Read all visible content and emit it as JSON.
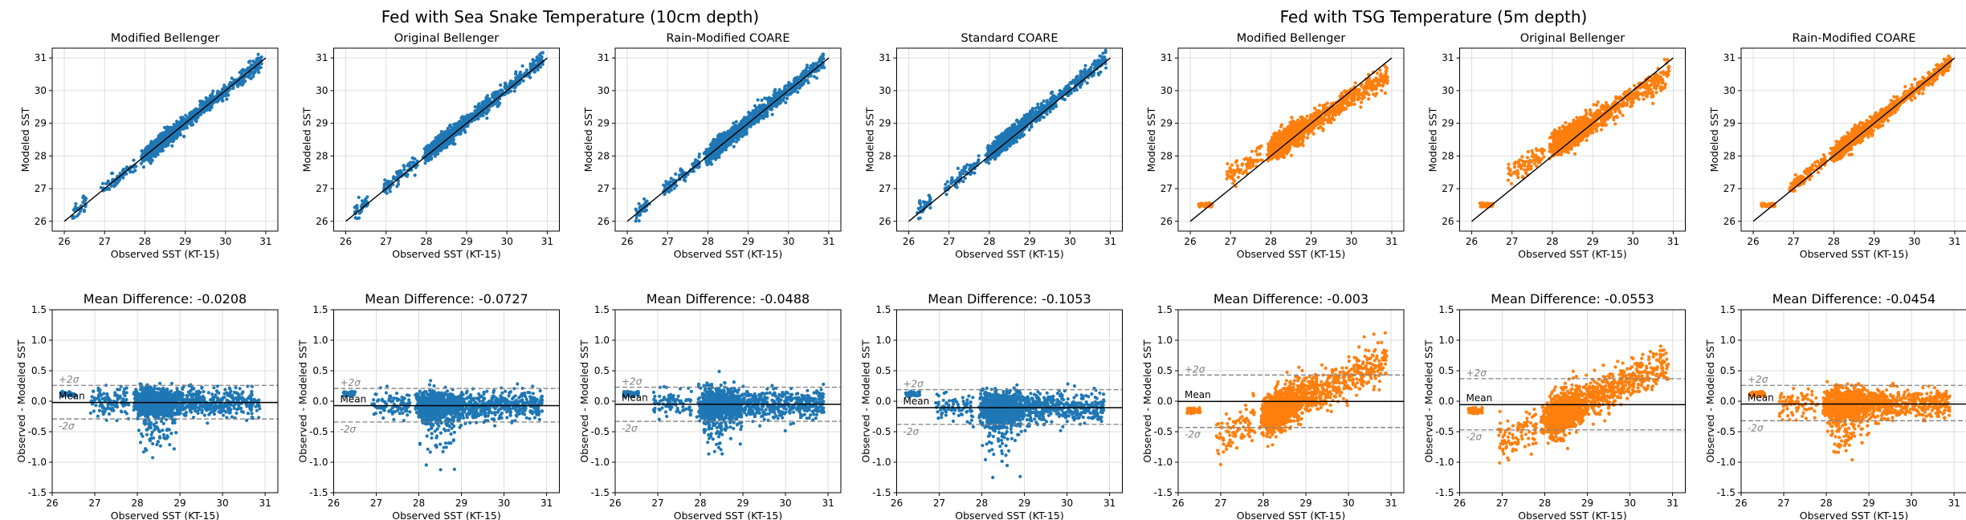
{
  "figure": {
    "left_title": "Fed with Sea Snake Temperature (10cm depth)",
    "right_title": "Fed with TSG Temperature (5m depth)"
  },
  "colors": {
    "sea_snake": "#1f77b4",
    "tsg": "#ff7f0e",
    "grid": "#dddddd",
    "band": "#808080"
  },
  "chart_data": {
    "type": "scatter",
    "scatter_axes": {
      "xlabel": "Observed SST (KT-15)",
      "ylabel": "Modeled SST",
      "xlim": [
        25.7,
        31.3
      ],
      "ylim": [
        25.7,
        31.3
      ],
      "xticks": [
        26,
        27,
        28,
        29,
        30,
        31
      ],
      "yticks": [
        26,
        27,
        28,
        29,
        30,
        31
      ],
      "identity_line": [
        [
          26,
          26
        ],
        [
          31,
          31
        ]
      ],
      "grid": true
    },
    "diff_axes": {
      "xlabel": "Observed SST (KT-15)",
      "ylabel": "Observed - Modeled SST",
      "xlim": [
        26,
        31.3
      ],
      "ylim": [
        -1.5,
        1.5
      ],
      "xticks": [
        26,
        27,
        28,
        29,
        30,
        31
      ],
      "yticks": [
        -1.5,
        -1.0,
        -0.5,
        0.0,
        0.5,
        1.0,
        1.5
      ],
      "grid": true
    },
    "diff_title_prefix": "Mean Difference: ",
    "annotation_labels": {
      "mean": "Mean",
      "plus": "+2σ",
      "minus": "-2σ"
    },
    "panels": [
      {
        "title": "Modified Bellenger",
        "source": "sea_snake",
        "mean": -0.0208,
        "mean_label": "-0.0208",
        "plus2sigma": 0.26,
        "minus2sigma": -0.29,
        "spread": 0.14,
        "slope": 1.0,
        "offset": 0.0
      },
      {
        "title": "Original Bellenger",
        "source": "sea_snake",
        "mean": -0.0727,
        "mean_label": "-0.0727",
        "plus2sigma": 0.21,
        "minus2sigma": -0.34,
        "spread": 0.14,
        "slope": 1.0,
        "offset": 0.05
      },
      {
        "title": "Rain-Modified COARE",
        "source": "sea_snake",
        "mean": -0.0488,
        "mean_label": "-0.0488",
        "plus2sigma": 0.23,
        "minus2sigma": -0.33,
        "spread": 0.15,
        "slope": 1.0,
        "offset": 0.03
      },
      {
        "title": "Standard COARE",
        "source": "sea_snake",
        "mean": -0.1053,
        "mean_label": "-0.1053",
        "plus2sigma": 0.19,
        "minus2sigma": -0.38,
        "spread": 0.15,
        "slope": 1.0,
        "offset": 0.08
      },
      {
        "title": "Modified Bellenger",
        "source": "tsg",
        "mean": -0.003,
        "mean_label": "-0.003",
        "plus2sigma": 0.43,
        "minus2sigma": -0.43,
        "spread": 0.22,
        "slope": 0.78,
        "offset": 0.0
      },
      {
        "title": "Original Bellenger",
        "source": "tsg",
        "mean": -0.0553,
        "mean_label": "-0.0553",
        "plus2sigma": 0.37,
        "minus2sigma": -0.47,
        "spread": 0.22,
        "slope": 0.78,
        "offset": 0.05
      },
      {
        "title": "Rain-Modified COARE",
        "source": "tsg",
        "mean": -0.0454,
        "mean_label": "-0.0454",
        "plus2sigma": 0.26,
        "minus2sigma": -0.32,
        "spread": 0.15,
        "slope": 0.97,
        "offset": 0.03
      }
    ]
  }
}
